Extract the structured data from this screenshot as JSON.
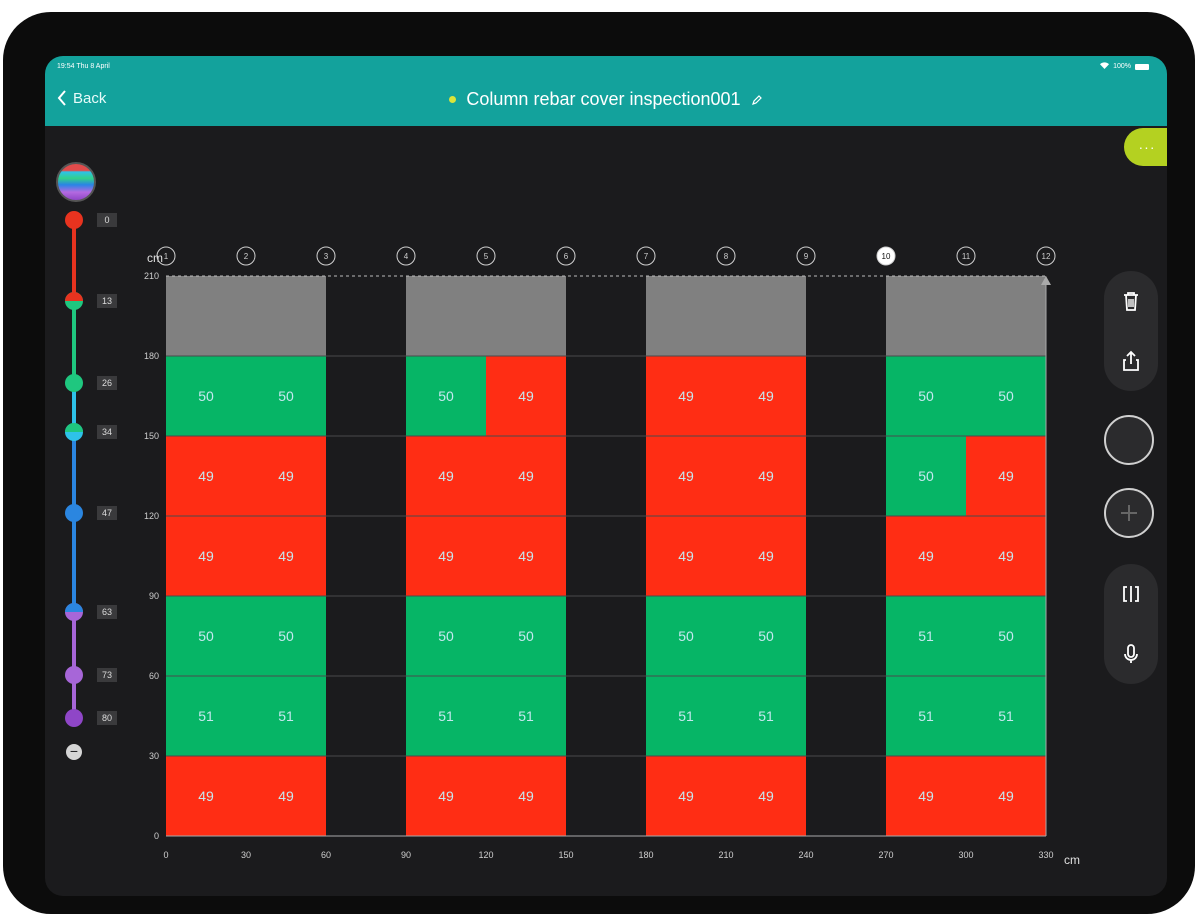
{
  "status": {
    "time": "19:54  Thu 8 April",
    "battery": "100%"
  },
  "nav": {
    "back_label": "Back",
    "title": "Column rebar cover inspection001"
  },
  "more_label": "···",
  "scale": {
    "labels": [
      "0",
      "13",
      "26",
      "34",
      "47",
      "63",
      "73",
      "80"
    ],
    "colors": {
      "red": "#e8331f",
      "green": "#1fc77f",
      "blue": "#2b86e0",
      "purple": "#a766d8"
    }
  },
  "colors": {
    "green": "#06b566",
    "red": "#ff2d14",
    "gray": "#808080",
    "teal": "#13a29c",
    "cell_text": "#c6e8f0"
  },
  "chart_data": {
    "type": "heatmap",
    "unit_x": "cm",
    "unit_y": "cm",
    "x_ticks": [
      "0",
      "30",
      "60",
      "90",
      "120",
      "150",
      "180",
      "210",
      "240",
      "270",
      "300",
      "330"
    ],
    "y_ticks": [
      "0",
      "30",
      "60",
      "90",
      "120",
      "150",
      "180",
      "210"
    ],
    "xlim": [
      0,
      330
    ],
    "ylim": [
      0,
      210
    ],
    "column_markers": [
      "1",
      "2",
      "3",
      "4",
      "5",
      "6",
      "7",
      "8",
      "9",
      "10",
      "11",
      "12"
    ],
    "selected_marker": "10",
    "cells": [
      {
        "x0": 0,
        "x1": 30,
        "y0": 0,
        "y1": 30,
        "value": "49",
        "status": "red"
      },
      {
        "x0": 30,
        "x1": 60,
        "y0": 0,
        "y1": 30,
        "value": "49",
        "status": "red"
      },
      {
        "x0": 90,
        "x1": 120,
        "y0": 0,
        "y1": 30,
        "value": "49",
        "status": "red"
      },
      {
        "x0": 120,
        "x1": 150,
        "y0": 0,
        "y1": 30,
        "value": "49",
        "status": "red"
      },
      {
        "x0": 180,
        "x1": 210,
        "y0": 0,
        "y1": 30,
        "value": "49",
        "status": "red"
      },
      {
        "x0": 210,
        "x1": 240,
        "y0": 0,
        "y1": 30,
        "value": "49",
        "status": "red"
      },
      {
        "x0": 270,
        "x1": 300,
        "y0": 0,
        "y1": 30,
        "value": "49",
        "status": "red"
      },
      {
        "x0": 300,
        "x1": 330,
        "y0": 0,
        "y1": 30,
        "value": "49",
        "status": "red"
      },
      {
        "x0": 0,
        "x1": 30,
        "y0": 30,
        "y1": 60,
        "value": "51",
        "status": "green"
      },
      {
        "x0": 30,
        "x1": 60,
        "y0": 30,
        "y1": 60,
        "value": "51",
        "status": "green"
      },
      {
        "x0": 90,
        "x1": 120,
        "y0": 30,
        "y1": 60,
        "value": "51",
        "status": "green"
      },
      {
        "x0": 120,
        "x1": 150,
        "y0": 30,
        "y1": 60,
        "value": "51",
        "status": "green"
      },
      {
        "x0": 180,
        "x1": 210,
        "y0": 30,
        "y1": 60,
        "value": "51",
        "status": "green"
      },
      {
        "x0": 210,
        "x1": 240,
        "y0": 30,
        "y1": 60,
        "value": "51",
        "status": "green"
      },
      {
        "x0": 270,
        "x1": 300,
        "y0": 30,
        "y1": 60,
        "value": "51",
        "status": "green"
      },
      {
        "x0": 300,
        "x1": 330,
        "y0": 30,
        "y1": 60,
        "value": "51",
        "status": "green"
      },
      {
        "x0": 0,
        "x1": 30,
        "y0": 60,
        "y1": 90,
        "value": "50",
        "status": "green"
      },
      {
        "x0": 30,
        "x1": 60,
        "y0": 60,
        "y1": 90,
        "value": "50",
        "status": "green"
      },
      {
        "x0": 90,
        "x1": 120,
        "y0": 60,
        "y1": 90,
        "value": "50",
        "status": "green"
      },
      {
        "x0": 120,
        "x1": 150,
        "y0": 60,
        "y1": 90,
        "value": "50",
        "status": "green"
      },
      {
        "x0": 180,
        "x1": 210,
        "y0": 60,
        "y1": 90,
        "value": "50",
        "status": "green"
      },
      {
        "x0": 210,
        "x1": 240,
        "y0": 60,
        "y1": 90,
        "value": "50",
        "status": "green"
      },
      {
        "x0": 270,
        "x1": 300,
        "y0": 60,
        "y1": 90,
        "value": "51",
        "status": "green"
      },
      {
        "x0": 300,
        "x1": 330,
        "y0": 60,
        "y1": 90,
        "value": "50",
        "status": "green"
      },
      {
        "x0": 0,
        "x1": 30,
        "y0": 90,
        "y1": 120,
        "value": "49",
        "status": "red"
      },
      {
        "x0": 30,
        "x1": 60,
        "y0": 90,
        "y1": 120,
        "value": "49",
        "status": "red"
      },
      {
        "x0": 90,
        "x1": 120,
        "y0": 90,
        "y1": 120,
        "value": "49",
        "status": "red"
      },
      {
        "x0": 120,
        "x1": 150,
        "y0": 90,
        "y1": 120,
        "value": "49",
        "status": "red"
      },
      {
        "x0": 180,
        "x1": 210,
        "y0": 90,
        "y1": 120,
        "value": "49",
        "status": "red"
      },
      {
        "x0": 210,
        "x1": 240,
        "y0": 90,
        "y1": 120,
        "value": "49",
        "status": "red"
      },
      {
        "x0": 270,
        "x1": 300,
        "y0": 90,
        "y1": 120,
        "value": "49",
        "status": "red"
      },
      {
        "x0": 300,
        "x1": 330,
        "y0": 90,
        "y1": 120,
        "value": "49",
        "status": "red"
      },
      {
        "x0": 0,
        "x1": 30,
        "y0": 120,
        "y1": 150,
        "value": "49",
        "status": "red"
      },
      {
        "x0": 30,
        "x1": 60,
        "y0": 120,
        "y1": 150,
        "value": "49",
        "status": "red"
      },
      {
        "x0": 90,
        "x1": 120,
        "y0": 120,
        "y1": 150,
        "value": "49",
        "status": "red"
      },
      {
        "x0": 120,
        "x1": 150,
        "y0": 120,
        "y1": 150,
        "value": "49",
        "status": "red"
      },
      {
        "x0": 180,
        "x1": 210,
        "y0": 120,
        "y1": 150,
        "value": "49",
        "status": "red"
      },
      {
        "x0": 210,
        "x1": 240,
        "y0": 120,
        "y1": 150,
        "value": "49",
        "status": "red"
      },
      {
        "x0": 270,
        "x1": 300,
        "y0": 120,
        "y1": 150,
        "value": "50",
        "status": "green"
      },
      {
        "x0": 300,
        "x1": 330,
        "y0": 120,
        "y1": 150,
        "value": "49",
        "status": "red"
      },
      {
        "x0": 0,
        "x1": 30,
        "y0": 150,
        "y1": 180,
        "value": "50",
        "status": "green"
      },
      {
        "x0": 30,
        "x1": 60,
        "y0": 150,
        "y1": 180,
        "value": "50",
        "status": "green"
      },
      {
        "x0": 90,
        "x1": 120,
        "y0": 150,
        "y1": 180,
        "value": "50",
        "status": "green"
      },
      {
        "x0": 120,
        "x1": 150,
        "y0": 150,
        "y1": 180,
        "value": "49",
        "status": "red"
      },
      {
        "x0": 180,
        "x1": 210,
        "y0": 150,
        "y1": 180,
        "value": "49",
        "status": "red"
      },
      {
        "x0": 210,
        "x1": 240,
        "y0": 150,
        "y1": 180,
        "value": "49",
        "status": "red"
      },
      {
        "x0": 270,
        "x1": 300,
        "y0": 150,
        "y1": 180,
        "value": "50",
        "status": "green"
      },
      {
        "x0": 300,
        "x1": 330,
        "y0": 150,
        "y1": 180,
        "value": "50",
        "status": "green"
      },
      {
        "x0": 0,
        "x1": 60,
        "y0": 180,
        "y1": 210,
        "value": "",
        "status": "gray"
      },
      {
        "x0": 90,
        "x1": 150,
        "y0": 180,
        "y1": 210,
        "value": "",
        "status": "gray"
      },
      {
        "x0": 180,
        "x1": 240,
        "y0": 180,
        "y1": 210,
        "value": "",
        "status": "gray"
      },
      {
        "x0": 270,
        "x1": 330,
        "y0": 180,
        "y1": 210,
        "value": "",
        "status": "gray"
      }
    ]
  }
}
